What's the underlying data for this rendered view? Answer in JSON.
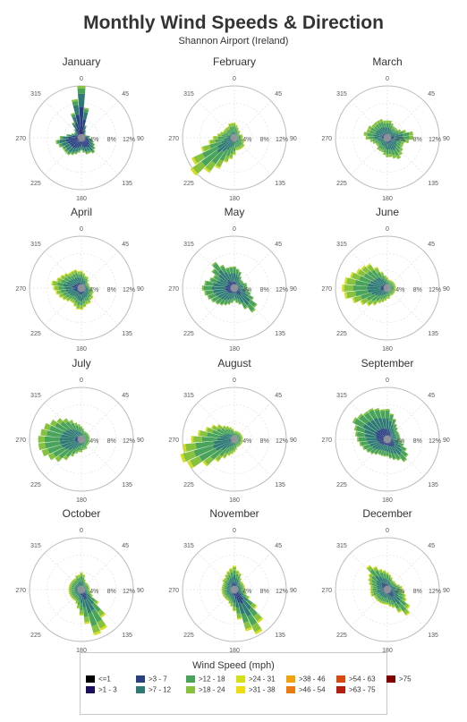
{
  "title": "Monthly Wind Speeds & Direction",
  "subtitle": "Shannon Airport (Ireland)",
  "legend": {
    "title": "Wind Speed (mph)",
    "items": [
      {
        "label": "<=1",
        "color": "#000000"
      },
      {
        "label": ">1 - 3",
        "color": "#1b0e5e"
      },
      {
        "label": ">3 - 7",
        "color": "#283f80"
      },
      {
        "label": ">7 - 12",
        "color": "#2f7a74"
      },
      {
        "label": ">12 - 18",
        "color": "#4aa35a"
      },
      {
        "label": ">18 - 24",
        "color": "#86c23d"
      },
      {
        "label": ">24 - 31",
        "color": "#d4de19"
      },
      {
        "label": ">31 - 38",
        "color": "#f0dc0c"
      },
      {
        "label": ">38 - 46",
        "color": "#f0a30a"
      },
      {
        "label": ">46 - 54",
        "color": "#eb7a10"
      },
      {
        "label": ">54 - 63",
        "color": "#d9480f"
      },
      {
        "label": ">63 - 75",
        "color": "#b51e0e"
      },
      {
        "label": ">75",
        "color": "#800000"
      }
    ]
  },
  "chart_data": [
    {
      "type": "polar-bar",
      "title": "January",
      "angle_labels": [
        "0",
        "45",
        "90",
        "135",
        "180",
        "225",
        "270",
        "315"
      ],
      "radial_ticks": [
        4,
        8,
        12
      ],
      "radial_tick_labels": [
        "4%",
        "8%",
        "12%"
      ],
      "rmax": 12,
      "directions": [
        0,
        10,
        20,
        30,
        40,
        50,
        60,
        70,
        80,
        90,
        100,
        110,
        120,
        130,
        140,
        150,
        160,
        170,
        180,
        190,
        200,
        210,
        220,
        230,
        240,
        250,
        260,
        270,
        280,
        290,
        300,
        310,
        320,
        330,
        340,
        350
      ],
      "totals": [
        12,
        7,
        3,
        2,
        1.5,
        1.2,
        1.2,
        1.5,
        2,
        2,
        2.5,
        3,
        3.5,
        4,
        4.5,
        4,
        4,
        3.5,
        3,
        3.5,
        4,
        4.5,
        5,
        5,
        5,
        5.5,
        6,
        5,
        3.5,
        2.5,
        2,
        2,
        2.5,
        4,
        6,
        9
      ],
      "mix": [
        0.2,
        0.4,
        0.25,
        0.1,
        0.05,
        0
      ]
    },
    {
      "type": "polar-bar",
      "title": "February",
      "angle_labels": [
        "0",
        "45",
        "90",
        "135",
        "180",
        "225",
        "270",
        "315"
      ],
      "radial_ticks": [
        4,
        8,
        12
      ],
      "radial_tick_labels": [
        "4%",
        "8%",
        "12%"
      ],
      "rmax": 12,
      "directions": [
        0,
        10,
        20,
        30,
        40,
        50,
        60,
        70,
        80,
        90,
        100,
        110,
        120,
        130,
        140,
        150,
        160,
        170,
        180,
        190,
        200,
        210,
        220,
        230,
        240,
        250,
        260,
        270,
        280,
        290,
        300,
        310,
        320,
        330,
        340,
        350
      ],
      "totals": [
        3.5,
        3,
        2.5,
        2,
        2,
        1.5,
        1.5,
        2,
        2,
        2,
        2,
        2.5,
        2.5,
        3,
        3,
        3,
        3,
        3,
        4,
        5,
        6,
        8,
        10,
        12.5,
        11,
        8,
        6,
        5,
        4,
        3.5,
        3,
        3,
        3,
        3,
        3.5,
        3.5
      ],
      "mix": [
        0,
        0.1,
        0.3,
        0.35,
        0.2,
        0.05
      ]
    },
    {
      "type": "polar-bar",
      "title": "March",
      "angle_labels": [
        "0",
        "45",
        "90",
        "135",
        "180",
        "225",
        "270",
        "315"
      ],
      "radial_ticks": [
        4,
        8,
        12
      ],
      "radial_tick_labels": [
        "4%",
        "8%",
        "12%"
      ],
      "rmax": 12,
      "directions": [
        0,
        10,
        20,
        30,
        40,
        50,
        60,
        70,
        80,
        90,
        100,
        110,
        120,
        130,
        140,
        150,
        160,
        170,
        180,
        190,
        200,
        210,
        220,
        230,
        240,
        250,
        260,
        270,
        280,
        290,
        300,
        310,
        320,
        330,
        340,
        350
      ],
      "totals": [
        4,
        4,
        3.5,
        3,
        3,
        3,
        3.5,
        4.5,
        6,
        6,
        5,
        4,
        4,
        4.5,
        5,
        5.5,
        5,
        4.5,
        4.5,
        4,
        3.5,
        3.5,
        3.5,
        3,
        3,
        3.5,
        4,
        5,
        5.5,
        5,
        5,
        4.5,
        4.5,
        4.5,
        4.5,
        4
      ],
      "mix": [
        0.05,
        0.2,
        0.35,
        0.25,
        0.15,
        0
      ]
    },
    {
      "type": "polar-bar",
      "title": "April",
      "angle_labels": [
        "0",
        "45",
        "90",
        "135",
        "180",
        "225",
        "270",
        "315"
      ],
      "radial_ticks": [
        4,
        8,
        12
      ],
      "radial_tick_labels": [
        "4%",
        "8%",
        "12%"
      ],
      "rmax": 12,
      "directions": [
        0,
        10,
        20,
        30,
        40,
        50,
        60,
        70,
        80,
        90,
        100,
        110,
        120,
        130,
        140,
        150,
        160,
        170,
        180,
        190,
        200,
        210,
        220,
        230,
        240,
        250,
        260,
        270,
        280,
        290,
        300,
        310,
        320,
        330,
        340,
        350
      ],
      "totals": [
        4,
        3.5,
        3,
        3,
        2.5,
        2,
        2,
        2,
        2,
        2.5,
        2.5,
        3,
        3,
        3.5,
        3.5,
        4,
        4,
        4.5,
        5,
        5,
        4.5,
        4,
        4,
        4.5,
        5,
        5.5,
        6,
        6.5,
        7,
        6,
        5.5,
        5,
        4.5,
        4.5,
        4.5,
        4
      ],
      "mix": [
        0.05,
        0.25,
        0.3,
        0.2,
        0.15,
        0.05
      ]
    },
    {
      "type": "polar-bar",
      "title": "May",
      "angle_labels": [
        "0",
        "45",
        "90",
        "135",
        "180",
        "225",
        "270",
        "315"
      ],
      "radial_ticks": [
        4,
        8,
        12
      ],
      "radial_tick_labels": [
        "4%",
        "8%",
        "12%"
      ],
      "rmax": 12,
      "directions": [
        0,
        10,
        20,
        30,
        40,
        50,
        60,
        70,
        80,
        90,
        100,
        110,
        120,
        130,
        140,
        150,
        160,
        170,
        180,
        190,
        200,
        210,
        220,
        230,
        240,
        250,
        260,
        270,
        280,
        290,
        300,
        310,
        320,
        330,
        340,
        350
      ],
      "totals": [
        5,
        4.5,
        4,
        3,
        2.5,
        2.5,
        2.5,
        3,
        3,
        3,
        3.5,
        4,
        5,
        6.5,
        7,
        5.5,
        4,
        3.5,
        3,
        3.5,
        4,
        4.5,
        5,
        5.5,
        6,
        6.5,
        7,
        7.5,
        7,
        6,
        5.5,
        6.5,
        7.5,
        6,
        5,
        5
      ],
      "mix": [
        0.05,
        0.25,
        0.4,
        0.25,
        0.05,
        0
      ]
    },
    {
      "type": "polar-bar",
      "title": "June",
      "angle_labels": [
        "0",
        "45",
        "90",
        "135",
        "180",
        "225",
        "270",
        "315"
      ],
      "radial_ticks": [
        4,
        8,
        12
      ],
      "radial_tick_labels": [
        "4%",
        "8%",
        "12%"
      ],
      "rmax": 12,
      "directions": [
        0,
        10,
        20,
        30,
        40,
        50,
        60,
        70,
        80,
        90,
        100,
        110,
        120,
        130,
        140,
        150,
        160,
        170,
        180,
        190,
        200,
        210,
        220,
        230,
        240,
        250,
        260,
        270,
        280,
        290,
        300,
        310,
        320,
        330,
        340,
        350
      ],
      "totals": [
        2.5,
        2,
        2,
        2,
        2,
        2,
        2,
        2,
        2,
        2,
        2,
        2,
        2,
        2,
        2,
        2,
        2,
        2.5,
        2.5,
        3,
        3.5,
        4,
        5,
        6,
        7,
        8.5,
        10,
        10.5,
        10,
        9,
        8,
        7.5,
        7,
        5.5,
        4,
        3
      ],
      "mix": [
        0,
        0.15,
        0.3,
        0.3,
        0.2,
        0.05
      ]
    },
    {
      "type": "polar-bar",
      "title": "July",
      "angle_labels": [
        "0",
        "45",
        "90",
        "135",
        "180",
        "225",
        "270",
        "315"
      ],
      "radial_ticks": [
        4,
        8,
        12
      ],
      "radial_tick_labels": [
        "4%",
        "8%",
        "12%"
      ],
      "rmax": 12,
      "directions": [
        0,
        10,
        20,
        30,
        40,
        50,
        60,
        70,
        80,
        90,
        100,
        110,
        120,
        130,
        140,
        150,
        160,
        170,
        180,
        190,
        200,
        210,
        220,
        230,
        240,
        250,
        260,
        270,
        280,
        290,
        300,
        310,
        320,
        330,
        340,
        350
      ],
      "totals": [
        3,
        2.5,
        2,
        2,
        2,
        2,
        2,
        2,
        2,
        2,
        2,
        2,
        2,
        2,
        2,
        2.5,
        2.5,
        2.5,
        3,
        3,
        3.5,
        4.5,
        6,
        7.5,
        8.5,
        9.5,
        10,
        10,
        9.5,
        9,
        8,
        7,
        6,
        5,
        4,
        3.5
      ],
      "mix": [
        0,
        0.15,
        0.35,
        0.35,
        0.15,
        0
      ]
    },
    {
      "type": "polar-bar",
      "title": "August",
      "angle_labels": [
        "0",
        "45",
        "90",
        "135",
        "180",
        "225",
        "270",
        "315"
      ],
      "radial_ticks": [
        4,
        8,
        12
      ],
      "radial_tick_labels": [
        "4%",
        "8%",
        "12%"
      ],
      "rmax": 12,
      "directions": [
        0,
        10,
        20,
        30,
        40,
        50,
        60,
        70,
        80,
        90,
        100,
        110,
        120,
        130,
        140,
        150,
        160,
        170,
        180,
        190,
        200,
        210,
        220,
        230,
        240,
        250,
        260,
        270,
        280,
        290,
        300,
        310,
        320,
        330,
        340,
        350
      ],
      "totals": [
        2,
        2,
        2,
        2,
        2,
        2,
        2,
        2,
        2,
        2,
        2,
        2,
        2,
        2,
        2,
        2,
        2,
        2.5,
        3,
        3.5,
        4,
        5,
        6.5,
        9,
        12,
        13,
        12,
        10,
        8.5,
        7,
        6,
        5,
        4,
        3.5,
        3,
        2.5
      ],
      "mix": [
        0,
        0.1,
        0.3,
        0.35,
        0.2,
        0.05
      ]
    },
    {
      "type": "polar-bar",
      "title": "September",
      "angle_labels": [
        "0",
        "45",
        "90",
        "135",
        "180",
        "225",
        "270",
        "315"
      ],
      "radial_ticks": [
        4,
        8,
        12
      ],
      "radial_tick_labels": [
        "4%",
        "8%",
        "12%"
      ],
      "rmax": 12,
      "directions": [
        0,
        10,
        20,
        30,
        40,
        50,
        60,
        70,
        80,
        90,
        100,
        110,
        120,
        130,
        140,
        150,
        160,
        170,
        180,
        190,
        200,
        210,
        220,
        230,
        240,
        250,
        260,
        270,
        280,
        290,
        300,
        310,
        320,
        330,
        340,
        350
      ],
      "totals": [
        7,
        6,
        5,
        4,
        3.5,
        3,
        3,
        3,
        3,
        3,
        3.5,
        4,
        5,
        6,
        6.5,
        5.5,
        5,
        4.5,
        4,
        4,
        4,
        4,
        4.5,
        5,
        5.5,
        6,
        6.5,
        7,
        7.5,
        8,
        9,
        8.5,
        8,
        8,
        7.5,
        7
      ],
      "mix": [
        0.05,
        0.3,
        0.35,
        0.25,
        0.05,
        0
      ]
    },
    {
      "type": "polar-bar",
      "title": "October",
      "angle_labels": [
        "0",
        "45",
        "90",
        "135",
        "180",
        "225",
        "270",
        "315"
      ],
      "radial_ticks": [
        4,
        8,
        12
      ],
      "radial_tick_labels": [
        "4%",
        "8%",
        "12%"
      ],
      "rmax": 12,
      "directions": [
        0,
        10,
        20,
        30,
        40,
        50,
        60,
        70,
        80,
        90,
        100,
        110,
        120,
        130,
        140,
        150,
        160,
        170,
        180,
        190,
        200,
        210,
        220,
        230,
        240,
        250,
        260,
        270,
        280,
        290,
        300,
        310,
        320,
        330,
        340,
        350
      ],
      "totals": [
        4,
        3.5,
        2.5,
        2,
        2,
        2,
        2,
        2,
        2,
        2,
        2,
        2.5,
        3,
        5,
        8,
        10.5,
        11,
        8,
        6,
        4.5,
        3.5,
        3,
        3,
        3,
        3,
        3,
        3,
        3,
        3,
        3,
        3,
        3,
        3,
        3,
        3.5,
        3.5
      ],
      "mix": [
        0.02,
        0.2,
        0.3,
        0.28,
        0.15,
        0.05
      ]
    },
    {
      "type": "polar-bar",
      "title": "November",
      "angle_labels": [
        "0",
        "45",
        "90",
        "135",
        "180",
        "225",
        "270",
        "315"
      ],
      "radial_ticks": [
        4,
        8,
        12
      ],
      "radial_tick_labels": [
        "4%",
        "8%",
        "12%"
      ],
      "rmax": 12,
      "directions": [
        0,
        10,
        20,
        30,
        40,
        50,
        60,
        70,
        80,
        90,
        100,
        110,
        120,
        130,
        140,
        150,
        160,
        170,
        180,
        190,
        200,
        210,
        220,
        230,
        240,
        250,
        260,
        270,
        280,
        290,
        300,
        310,
        320,
        330,
        340,
        350
      ],
      "totals": [
        5.5,
        4.5,
        4,
        3,
        2.5,
        2.5,
        2.5,
        2.5,
        2.5,
        2.5,
        2.5,
        3,
        4,
        6.5,
        9.5,
        11.5,
        10,
        7,
        5,
        4,
        3.5,
        3,
        3,
        3,
        3,
        3,
        3,
        3,
        3,
        3,
        3,
        3.5,
        3.5,
        4,
        4.5,
        5
      ],
      "mix": [
        0.02,
        0.3,
        0.28,
        0.2,
        0.15,
        0.05
      ]
    },
    {
      "type": "polar-bar",
      "title": "December",
      "angle_labels": [
        "0",
        "45",
        "90",
        "135",
        "180",
        "225",
        "270",
        "315"
      ],
      "radial_ticks": [
        4,
        8,
        12
      ],
      "radial_tick_labels": [
        "4%",
        "8%",
        "12%"
      ],
      "rmax": 12,
      "directions": [
        0,
        10,
        20,
        30,
        40,
        50,
        60,
        70,
        80,
        90,
        100,
        110,
        120,
        130,
        140,
        150,
        160,
        170,
        180,
        190,
        200,
        210,
        220,
        230,
        240,
        250,
        260,
        270,
        280,
        290,
        300,
        310,
        320,
        330,
        340,
        350
      ],
      "totals": [
        4,
        3.5,
        3,
        2.5,
        2.5,
        2.5,
        2.5,
        3,
        3.5,
        3.5,
        4,
        4.5,
        5,
        6.5,
        7.5,
        6,
        4.5,
        4,
        3.5,
        3.5,
        3.5,
        3.5,
        3.5,
        3.5,
        3.5,
        4,
        4,
        4,
        4,
        4.5,
        5,
        5.5,
        7,
        6,
        5,
        4.5
      ],
      "mix": [
        0.03,
        0.25,
        0.3,
        0.25,
        0.12,
        0.05
      ]
    }
  ]
}
